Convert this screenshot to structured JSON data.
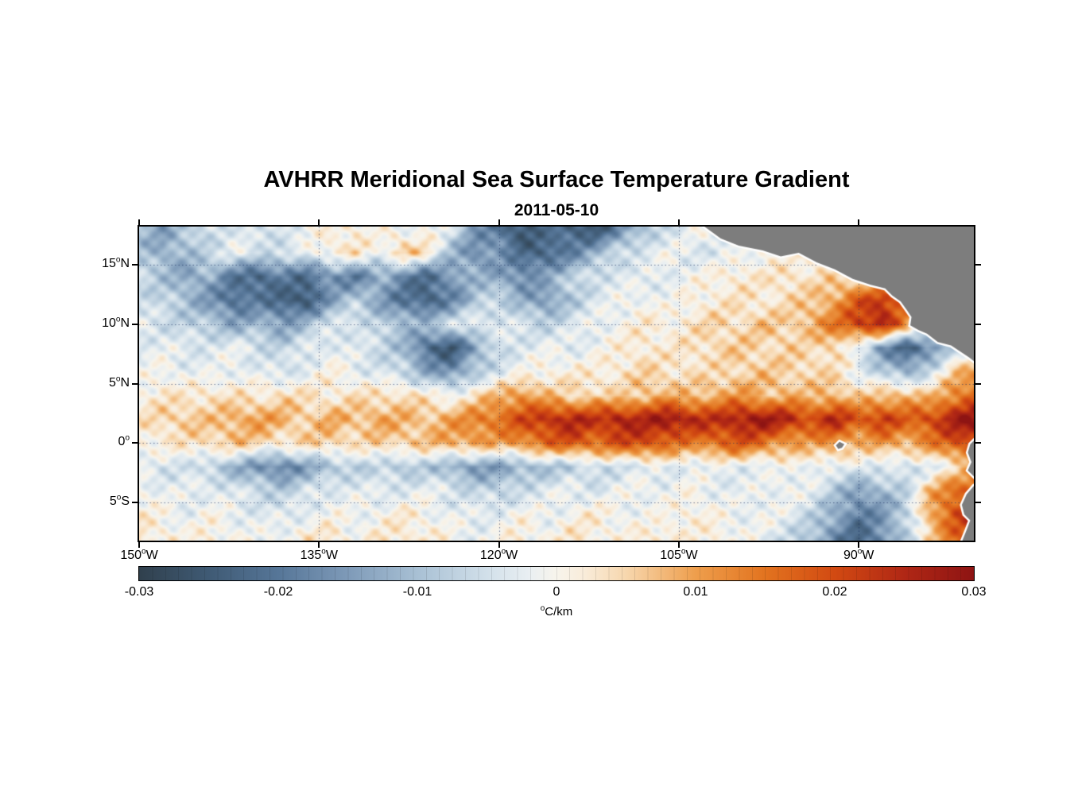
{
  "chart_data": {
    "type": "heatmap",
    "title": "AVHRR Meridional Sea Surface Temperature Gradient",
    "date": "2011-05-10",
    "extent": {
      "lon_min": -150,
      "lon_max": -80.4,
      "lat_min": -8.2,
      "lat_max": 18.2
    },
    "x_axis": {
      "ticks": [
        {
          "value": "150",
          "sup": "o",
          "suffix": "W",
          "lon": -150
        },
        {
          "value": "135",
          "sup": "o",
          "suffix": "W",
          "lon": -135
        },
        {
          "value": "120",
          "sup": "o",
          "suffix": "W",
          "lon": -120
        },
        {
          "value": "105",
          "sup": "o",
          "suffix": "W",
          "lon": -105
        },
        {
          "value": "90",
          "sup": "o",
          "suffix": "W",
          "lon": -90
        }
      ]
    },
    "y_axis": {
      "ticks": [
        {
          "value": "15",
          "sup": "o",
          "suffix": "N",
          "lat": 15
        },
        {
          "value": "10",
          "sup": "o",
          "suffix": "N",
          "lat": 10
        },
        {
          "value": "5",
          "sup": "o",
          "suffix": "N",
          "lat": 5
        },
        {
          "value": "0",
          "sup": "o",
          "suffix": "",
          "lat": 0
        },
        {
          "value": "5",
          "sup": "o",
          "suffix": "S",
          "lat": -5
        }
      ]
    },
    "gridlines": {
      "lons": [
        -135,
        -120,
        -105,
        -90
      ],
      "lats": [
        15,
        10,
        5,
        0,
        -5
      ],
      "color": "rgba(25,45,95,0.6)"
    },
    "grid": {
      "lon_start": -150,
      "lon_step": 2,
      "lat_start": 18,
      "lat_step": -2,
      "value_scale": 0.001,
      "values_milli": [
        [
          -10,
          -14,
          -9,
          -5,
          -3,
          -6,
          -3,
          -1,
          1,
          2,
          0,
          -2,
          1,
          -4,
          -14,
          -22,
          -26,
          -20,
          -24,
          -26,
          -18,
          -10,
          -5,
          -2,
          0,
          0,
          0,
          0,
          0,
          0,
          0,
          0,
          0,
          0,
          0,
          0
        ],
        [
          -9,
          -13,
          -10,
          -6,
          -2,
          -4,
          -6,
          -2,
          2,
          4,
          -2,
          8,
          3,
          -10,
          -18,
          -14,
          -22,
          -24,
          -18,
          -12,
          -6,
          -3,
          -1,
          -3,
          -4,
          -2,
          0,
          0,
          0,
          0,
          0,
          0,
          0,
          0,
          0,
          0
        ],
        [
          -6,
          -9,
          -14,
          -12,
          -20,
          -24,
          -18,
          -22,
          -16,
          -20,
          -12,
          -18,
          -22,
          -16,
          -10,
          -14,
          -18,
          -12,
          -8,
          -5,
          -3,
          -4,
          -2,
          -1,
          1,
          3,
          2,
          4,
          3,
          5,
          3,
          0,
          0,
          0,
          0,
          0
        ],
        [
          -5,
          -7,
          -10,
          -16,
          -22,
          -18,
          -24,
          -26,
          -14,
          -8,
          -14,
          -20,
          -24,
          -18,
          -10,
          -6,
          -12,
          -16,
          -9,
          -4,
          -2,
          0,
          -2,
          1,
          2,
          3,
          2,
          4,
          6,
          10,
          18,
          24,
          14,
          0,
          0,
          0
        ],
        [
          -3,
          -5,
          -7,
          -9,
          -13,
          -11,
          -15,
          -9,
          -5,
          -3,
          -7,
          -11,
          -9,
          -5,
          -2,
          -3,
          -5,
          -7,
          -4,
          -2,
          0,
          2,
          1,
          3,
          5,
          4,
          7,
          5,
          9,
          14,
          22,
          26,
          12,
          0,
          0,
          0
        ],
        [
          -3,
          -2,
          -4,
          -3,
          -2,
          -5,
          -7,
          -4,
          -2,
          -4,
          -6,
          -10,
          -22,
          -26,
          -14,
          -6,
          -3,
          -2,
          -3,
          -1,
          1,
          3,
          2,
          3,
          5,
          6,
          4,
          6,
          3,
          6,
          -4,
          -16,
          -24,
          -18,
          -6,
          0
        ],
        [
          -2,
          0,
          -2,
          -3,
          -1,
          -3,
          -5,
          -2,
          1,
          -2,
          -4,
          -7,
          -13,
          -17,
          -9,
          -4,
          -1,
          1,
          2,
          1,
          3,
          5,
          3,
          4,
          3,
          5,
          7,
          4,
          6,
          3,
          -2,
          -8,
          -13,
          -5,
          6,
          10
        ],
        [
          1,
          3,
          2,
          4,
          3,
          2,
          5,
          3,
          2,
          4,
          3,
          5,
          2,
          -1,
          4,
          8,
          12,
          7,
          4,
          6,
          4,
          7,
          9,
          6,
          9,
          11,
          7,
          9,
          6,
          9,
          5,
          7,
          9,
          6,
          13,
          18
        ],
        [
          3,
          5,
          7,
          6,
          9,
          11,
          8,
          6,
          9,
          7,
          10,
          8,
          7,
          10,
          13,
          16,
          20,
          24,
          26,
          23,
          27,
          25,
          29,
          26,
          23,
          27,
          29,
          25,
          21,
          25,
          19,
          23,
          17,
          21,
          27,
          30
        ],
        [
          1,
          2,
          3,
          5,
          7,
          5,
          3,
          5,
          6,
          4,
          5,
          6,
          7,
          9,
          11,
          9,
          13,
          16,
          19,
          16,
          19,
          21,
          17,
          13,
          16,
          19,
          15,
          11,
          9,
          13,
          7,
          11,
          9,
          13,
          19,
          23
        ],
        [
          -3,
          -5,
          -4,
          -8,
          -12,
          -16,
          -19,
          -14,
          -10,
          -8,
          -6,
          -10,
          -8,
          -12,
          -16,
          -14,
          -12,
          -10,
          -8,
          -6,
          -5,
          -4,
          -3,
          -2,
          -3,
          -2,
          -3,
          -2,
          0,
          -4,
          -2,
          -3,
          -6,
          -3,
          2,
          8
        ],
        [
          0,
          -2,
          -3,
          -2,
          -4,
          -6,
          -8,
          -5,
          -3,
          -2,
          -4,
          -3,
          -2,
          -4,
          -6,
          -8,
          -5,
          -3,
          -2,
          -4,
          -2,
          0,
          -2,
          0,
          -2,
          -3,
          -2,
          0,
          -3,
          -8,
          -15,
          -11,
          -6,
          8,
          16,
          21
        ],
        [
          2,
          0,
          -2,
          0,
          -2,
          -3,
          -4,
          -2,
          0,
          -2,
          0,
          2,
          0,
          -2,
          -3,
          -2,
          0,
          -2,
          0,
          2,
          0,
          -2,
          0,
          2,
          0,
          -2,
          0,
          -3,
          -6,
          -13,
          -19,
          -15,
          -8,
          10,
          19,
          23
        ],
        [
          3,
          2,
          0,
          2,
          0,
          -2,
          0,
          2,
          3,
          0,
          2,
          3,
          2,
          0,
          -2,
          0,
          2,
          0,
          3,
          2,
          0,
          2,
          3,
          0,
          2,
          0,
          -3,
          -5,
          -10,
          -17,
          -23,
          -17,
          -7,
          5,
          16,
          21
        ]
      ]
    },
    "colormap": {
      "stops": [
        {
          "v": -30,
          "c": "#30404d"
        },
        {
          "v": -25,
          "c": "#3f5a74"
        },
        {
          "v": -20,
          "c": "#567698"
        },
        {
          "v": -15,
          "c": "#7e9ab8"
        },
        {
          "v": -10,
          "c": "#a8c0d4"
        },
        {
          "v": -5,
          "c": "#d2e0ea"
        },
        {
          "v": -2,
          "c": "#e9eff2"
        },
        {
          "v": 0,
          "c": "#f7f4ec"
        },
        {
          "v": 2,
          "c": "#f9ecda"
        },
        {
          "v": 5,
          "c": "#f7d7ae"
        },
        {
          "v": 10,
          "c": "#ee9e4c"
        },
        {
          "v": 15,
          "c": "#e2731f"
        },
        {
          "v": 20,
          "c": "#d24a12"
        },
        {
          "v": 25,
          "c": "#b02715"
        },
        {
          "v": 30,
          "c": "#8e1413"
        }
      ]
    },
    "colorbar": {
      "min": -0.03,
      "max": 0.03,
      "ticks": [
        -0.03,
        -0.02,
        -0.01,
        0,
        0.01,
        0.02,
        0.03
      ],
      "tick_labels": [
        "-0.03",
        "-0.02",
        "-0.01",
        "0",
        "0.01",
        "0.02",
        "0.03"
      ],
      "unit_sup": "o",
      "unit_text": "C/km",
      "segments": 64
    },
    "land": {
      "color": "#7d7d7d",
      "outline": "#ffffff",
      "polygons": {
        "central_america": [
          [
            -103,
            18.3
          ],
          [
            -101.5,
            17.2
          ],
          [
            -100,
            16.6
          ],
          [
            -98,
            16.2
          ],
          [
            -96.5,
            15.7
          ],
          [
            -95,
            16
          ],
          [
            -93.5,
            15.2
          ],
          [
            -92,
            14.6
          ],
          [
            -90.5,
            13.8
          ],
          [
            -89,
            13.3
          ],
          [
            -87.8,
            13
          ],
          [
            -87.2,
            12.4
          ],
          [
            -86.5,
            11.9
          ],
          [
            -86,
            11.2
          ],
          [
            -85.6,
            10.6
          ],
          [
            -85.7,
            9.9
          ],
          [
            -85,
            9.5
          ],
          [
            -84.3,
            9.2
          ],
          [
            -83.4,
            8.5
          ],
          [
            -82.3,
            8.2
          ],
          [
            -81.4,
            7.6
          ],
          [
            -80.8,
            7.2
          ],
          [
            -80.3,
            6.8
          ],
          [
            -79,
            6.3
          ],
          [
            -79,
            19
          ],
          [
            -103,
            19
          ]
        ],
        "south_america": [
          [
            -79,
            0.6
          ],
          [
            -80.2,
            0.4
          ],
          [
            -80.7,
            -0.1
          ],
          [
            -80.9,
            -0.8
          ],
          [
            -80.6,
            -1.6
          ],
          [
            -80.9,
            -2.3
          ],
          [
            -80.3,
            -2.9
          ],
          [
            -79.8,
            -3.2
          ],
          [
            -80.4,
            -3.6
          ],
          [
            -81,
            -4.3
          ],
          [
            -81.4,
            -5.2
          ],
          [
            -81.2,
            -6
          ],
          [
            -80.7,
            -6.5
          ],
          [
            -81,
            -7.3
          ],
          [
            -81.4,
            -8.3
          ],
          [
            -79,
            -8.3
          ]
        ],
        "galapagos": [
          [
            -91.9,
            -0.2
          ],
          [
            -91.6,
            0.1
          ],
          [
            -91.2,
            -0.1
          ],
          [
            -91.4,
            -0.4
          ],
          [
            -91.7,
            -0.5
          ]
        ]
      }
    }
  }
}
